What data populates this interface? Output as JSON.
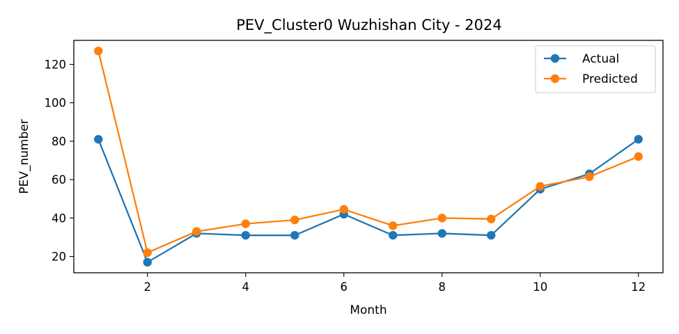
{
  "chart_data": {
    "type": "line",
    "title": "PEV_Cluster0 Wuzhishan City - 2024",
    "xlabel": "Month",
    "ylabel": "PEV_number",
    "x": [
      1,
      2,
      3,
      4,
      5,
      6,
      7,
      8,
      9,
      10,
      11,
      12
    ],
    "xlim": [
      0.5,
      12.5
    ],
    "ylim": [
      11.5,
      132.5
    ],
    "xticks": [
      2,
      4,
      6,
      8,
      10,
      12
    ],
    "yticks": [
      20,
      40,
      60,
      80,
      100,
      120
    ],
    "grid": false,
    "legend_position": "top-right",
    "series": [
      {
        "name": "Actual",
        "color": "#1f77b4",
        "marker": "circle",
        "values": [
          81,
          17,
          32,
          31,
          31,
          42,
          31,
          32,
          31,
          55,
          63,
          81
        ]
      },
      {
        "name": "Predicted",
        "color": "#ff7f0e",
        "marker": "circle",
        "values": [
          127,
          22,
          33,
          37,
          39,
          44.5,
          36,
          40,
          39.5,
          56.5,
          61.5,
          72
        ]
      }
    ]
  }
}
